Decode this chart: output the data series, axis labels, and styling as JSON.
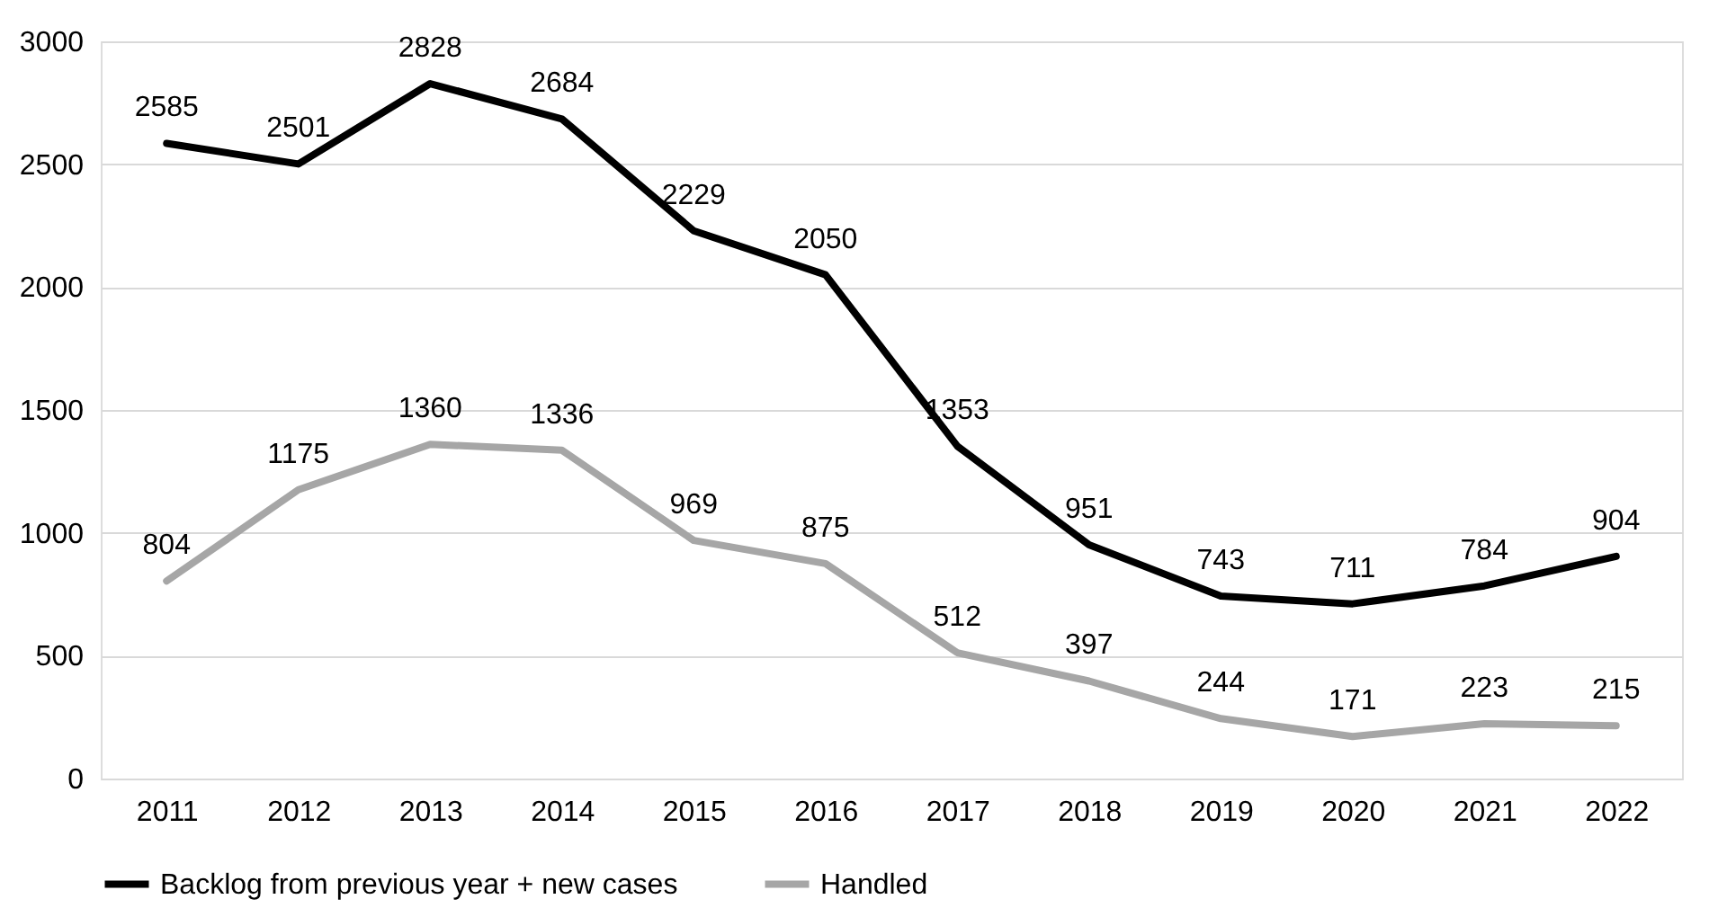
{
  "chart_data": {
    "type": "line",
    "categories": [
      "2011",
      "2012",
      "2013",
      "2014",
      "2015",
      "2016",
      "2017",
      "2018",
      "2019",
      "2020",
      "2021",
      "2022"
    ],
    "series": [
      {
        "name": "Backlog from previous year + new cases",
        "color": "#000000",
        "values": [
          2585,
          2501,
          2828,
          2684,
          2229,
          2050,
          1353,
          951,
          743,
          711,
          784,
          904
        ]
      },
      {
        "name": "Handled",
        "color": "#a6a6a6",
        "values": [
          804,
          1175,
          1360,
          1336,
          969,
          875,
          512,
          397,
          244,
          171,
          223,
          215
        ]
      }
    ],
    "ylim": [
      0,
      3000
    ],
    "yticks": [
      0,
      500,
      1000,
      1500,
      2000,
      2500,
      3000
    ],
    "grid": "y",
    "legend": "bottom",
    "data_labels": true,
    "marker": "none",
    "line_style": "solid"
  }
}
